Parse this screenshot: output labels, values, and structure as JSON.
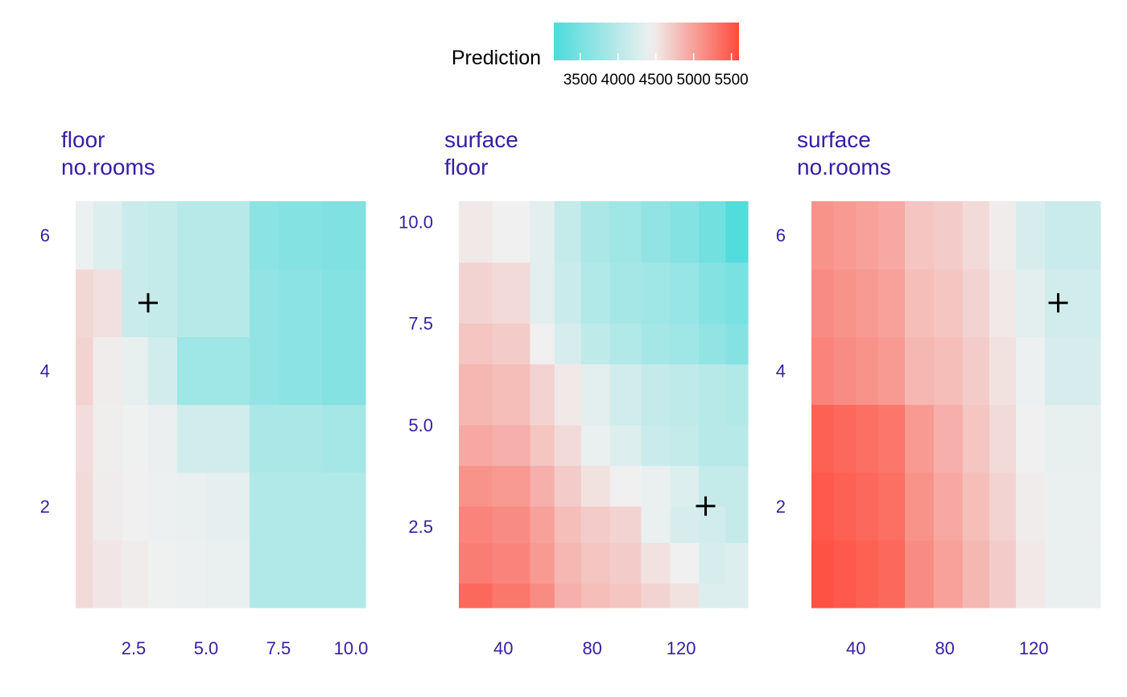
{
  "legend": {
    "title": "Prediction",
    "ticks": [
      3500,
      4000,
      4500,
      5000,
      5500
    ],
    "min": 3150,
    "max": 5600,
    "mid": 4450,
    "colors": {
      "low": "#4ddbdb",
      "mid": "#f0f0f0",
      "high": "#ff4b3c"
    }
  },
  "chart_data": [
    {
      "type": "heatmap",
      "title_lines": [
        "floor",
        "no.rooms"
      ],
      "xlabel": "",
      "ylabel": "",
      "xlim": [
        0.5,
        10.5
      ],
      "ylim": [
        0.5,
        6.5
      ],
      "x_ticks": [
        2.5,
        5.0,
        7.5,
        10.0
      ],
      "x_tick_labels": [
        "2.5",
        "5.0",
        "7.5",
        "10.0"
      ],
      "y_ticks": [
        2,
        4,
        6
      ],
      "y_tick_labels": [
        "2",
        "4",
        "6"
      ],
      "x_breaks": [
        0.5,
        1.1,
        2.1,
        3.0,
        4.0,
        5.0,
        6.5,
        7.5,
        9.0,
        10.5
      ],
      "y_breaks": [
        0.5,
        1.5,
        2.5,
        3.5,
        4.5,
        5.5,
        6.5
      ],
      "values": [
        [
          4600,
          4520,
          4480,
          4440,
          4420,
          4400,
          3950,
          3950,
          3950
        ],
        [
          4600,
          4480,
          4450,
          4420,
          4400,
          4370,
          3950,
          3950,
          3950
        ],
        [
          4580,
          4470,
          4440,
          4410,
          4200,
          4200,
          3900,
          3900,
          3850
        ],
        [
          4650,
          4480,
          4380,
          4200,
          3800,
          3800,
          3700,
          3650,
          3600
        ],
        [
          4620,
          4560,
          4150,
          4100,
          4000,
          4000,
          3700,
          3650,
          3600
        ],
        [
          4420,
          4300,
          4150,
          4100,
          4000,
          4000,
          3650,
          3600,
          3550
        ]
      ],
      "observation": {
        "x": 3,
        "y": 5
      }
    },
    {
      "type": "heatmap",
      "title_lines": [
        "surface",
        "floor"
      ],
      "xlabel": "",
      "ylabel": "",
      "xlim": [
        20,
        150
      ],
      "ylim": [
        0.5,
        10.5
      ],
      "x_ticks": [
        40,
        80,
        120
      ],
      "x_tick_labels": [
        "40",
        "80",
        "120"
      ],
      "y_ticks": [
        2.5,
        5.0,
        7.5,
        10.0
      ],
      "y_tick_labels": [
        "2.5",
        "5.0",
        "7.5",
        "10.0"
      ],
      "x_breaks": [
        20,
        35,
        52,
        63,
        75,
        88,
        102,
        115,
        128,
        140,
        150
      ],
      "y_breaks": [
        0.5,
        1.1,
        2.1,
        3.0,
        4.0,
        5.0,
        6.5,
        7.5,
        9.0,
        10.5
      ],
      "values": [
        [
          5400,
          5300,
          5150,
          4900,
          4800,
          4750,
          4650,
          4550,
          4300,
          4300
        ],
        [
          5250,
          5200,
          5050,
          4850,
          4750,
          4700,
          4550,
          4450,
          4250,
          4300
        ],
        [
          5200,
          5150,
          5000,
          4800,
          4700,
          4650,
          4400,
          4250,
          4200,
          4100
        ],
        [
          5100,
          5050,
          4900,
          4700,
          4550,
          4450,
          4400,
          4300,
          4100,
          4100
        ],
        [
          4950,
          4900,
          4750,
          4600,
          4400,
          4300,
          4150,
          4100,
          4000,
          4000
        ],
        [
          4850,
          4800,
          4650,
          4500,
          4350,
          4200,
          4100,
          4050,
          4000,
          3950
        ],
        [
          4750,
          4700,
          4450,
          4250,
          4050,
          3950,
          3850,
          3800,
          3700,
          3600
        ],
        [
          4650,
          4600,
          4350,
          4150,
          3950,
          3850,
          3800,
          3750,
          3600,
          3500
        ],
        [
          4500,
          4450,
          4350,
          4100,
          3900,
          3800,
          3700,
          3600,
          3450,
          3200
        ]
      ],
      "observation": {
        "x": 131,
        "y": 3
      }
    },
    {
      "type": "heatmap",
      "title_lines": [
        "surface",
        "no.rooms"
      ],
      "xlabel": "",
      "ylabel": "",
      "xlim": [
        20,
        150
      ],
      "ylim": [
        0.5,
        6.5
      ],
      "x_ticks": [
        40,
        80,
        120
      ],
      "x_tick_labels": [
        "40",
        "80",
        "120"
      ],
      "y_ticks": [
        2,
        4,
        6
      ],
      "y_tick_labels": [
        "2",
        "4",
        "6"
      ],
      "x_breaks": [
        20,
        30,
        40,
        50,
        62,
        75,
        88,
        100,
        112,
        125,
        138,
        150
      ],
      "y_breaks": [
        0.5,
        1.5,
        2.5,
        3.5,
        4.5,
        5.5,
        6.5
      ],
      "values": [
        [
          5550,
          5500,
          5450,
          5400,
          5150,
          5000,
          4850,
          4700,
          4500,
          4400,
          4400
        ],
        [
          5500,
          5450,
          5400,
          5350,
          5100,
          4950,
          4800,
          4650,
          4480,
          4400,
          4400
        ],
        [
          5450,
          5400,
          5350,
          5300,
          5050,
          4900,
          4750,
          4600,
          4450,
          4380,
          4380
        ],
        [
          5200,
          5150,
          5100,
          5050,
          4850,
          4800,
          4700,
          4550,
          4420,
          4250,
          4250
        ],
        [
          5150,
          5100,
          5050,
          5000,
          4800,
          4750,
          4650,
          4500,
          4350,
          4200,
          4200
        ],
        [
          5100,
          5050,
          5000,
          4950,
          4750,
          4700,
          4600,
          4480,
          4250,
          4150,
          4150
        ]
      ],
      "observation": {
        "x": 131,
        "y": 5
      }
    }
  ]
}
